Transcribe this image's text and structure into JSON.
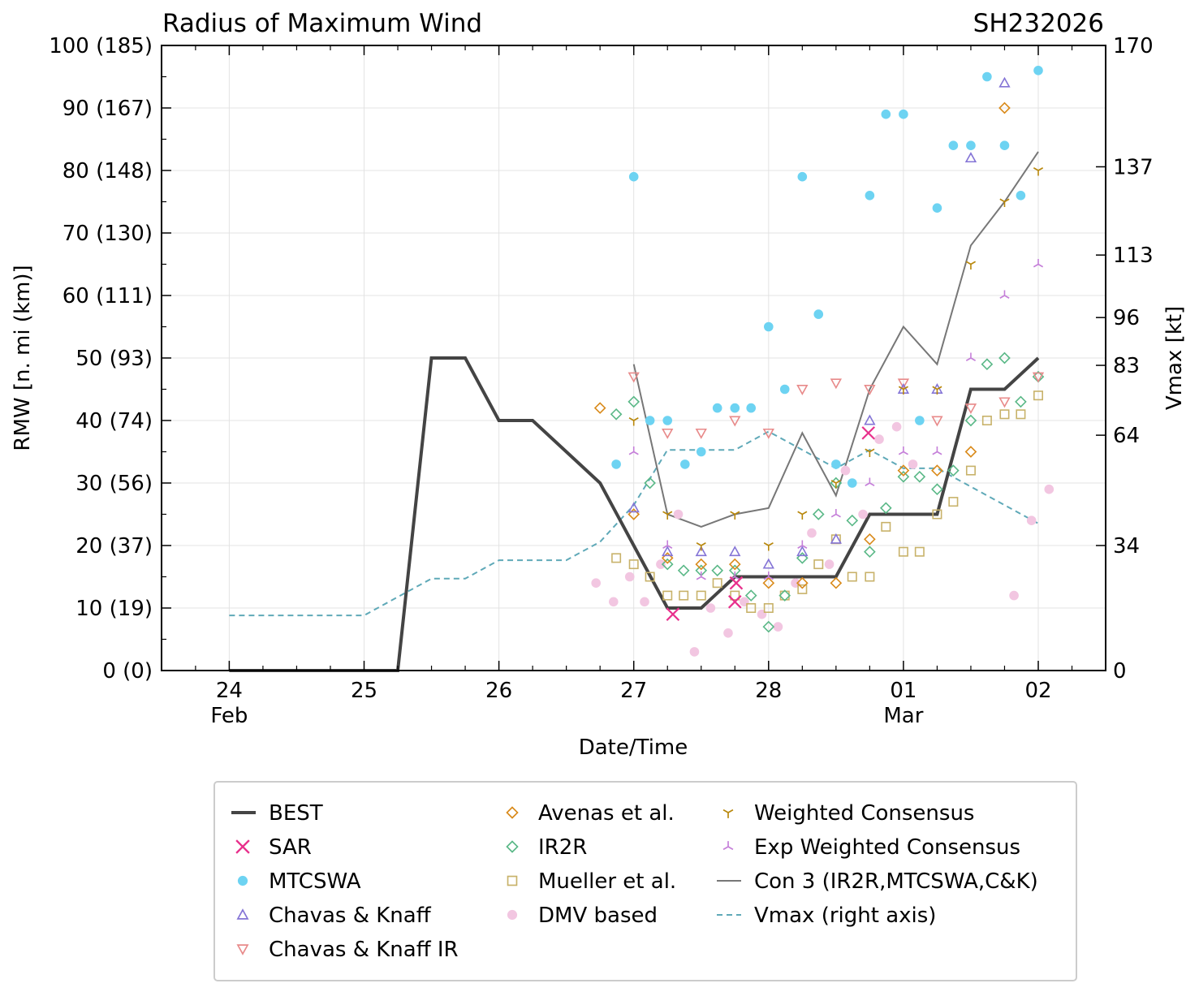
{
  "chart_data": {
    "type": "scatter",
    "title": "Radius of Maximum Wind",
    "storm_id": "SH232026",
    "xlabel": "Date/Time",
    "ylabel": "RMW [n. mi (km)]",
    "y2label": "Vmax [kt]",
    "xlim": [
      -0.5,
      6.5
    ],
    "ylim": [
      0,
      100
    ],
    "y2lim": [
      0,
      170
    ],
    "x_ticks": [
      {
        "x": 0,
        "day": "24",
        "month": "Feb"
      },
      {
        "x": 1,
        "day": "25",
        "month": ""
      },
      {
        "x": 2,
        "day": "26",
        "month": ""
      },
      {
        "x": 3,
        "day": "27",
        "month": ""
      },
      {
        "x": 4,
        "day": "28",
        "month": ""
      },
      {
        "x": 5,
        "day": "01",
        "month": "Mar"
      },
      {
        "x": 6,
        "day": "02",
        "month": ""
      }
    ],
    "y_ticks": [
      {
        "v": 0,
        "label": "0 (0)"
      },
      {
        "v": 10,
        "label": "10 (19)"
      },
      {
        "v": 20,
        "label": "20 (37)"
      },
      {
        "v": 30,
        "label": "30 (56)"
      },
      {
        "v": 40,
        "label": "40 (74)"
      },
      {
        "v": 50,
        "label": "50 (93)"
      },
      {
        "v": 60,
        "label": "60 (111)"
      },
      {
        "v": 70,
        "label": "70 (130)"
      },
      {
        "v": 80,
        "label": "80 (148)"
      },
      {
        "v": 90,
        "label": "90 (167)"
      },
      {
        "v": 100,
        "label": "100 (185)"
      }
    ],
    "y2_ticks": [
      {
        "v": 0,
        "label": "0"
      },
      {
        "v": 34,
        "label": "34"
      },
      {
        "v": 64,
        "label": "64"
      },
      {
        "v": 83,
        "label": "83"
      },
      {
        "v": 96,
        "label": "96"
      },
      {
        "v": 113,
        "label": "113"
      },
      {
        "v": 137,
        "label": "137"
      },
      {
        "v": 170,
        "label": "170"
      }
    ],
    "legend": {
      "placement": "below",
      "columns": [
        [
          "BEST",
          "SAR",
          "MTCSWA",
          "Chavas & Knaff",
          "Chavas & Knaff IR"
        ],
        [
          "Avenas et al.",
          "IR2R",
          "Mueller et al.",
          "DMV based"
        ],
        [
          "Weighted Consensus",
          "Exp Weighted Consensus",
          "Con 3 (IR2R,MTCSWA,C&K)",
          "Vmax (right axis)"
        ]
      ]
    },
    "series": [
      {
        "name": "BEST",
        "kind": "line",
        "style": "solid-thick",
        "color": "#444444",
        "points": [
          [
            0,
            0
          ],
          [
            1,
            0
          ],
          [
            1.25,
            0
          ],
          [
            1.5,
            50
          ],
          [
            1.75,
            50
          ],
          [
            2,
            40
          ],
          [
            2.25,
            40
          ],
          [
            2.75,
            30
          ],
          [
            3,
            20
          ],
          [
            3.25,
            10
          ],
          [
            3.5,
            10
          ],
          [
            3.75,
            15
          ],
          [
            4,
            15
          ],
          [
            4.25,
            15
          ],
          [
            4.5,
            15
          ],
          [
            4.75,
            25
          ],
          [
            5,
            25
          ],
          [
            5.25,
            25
          ],
          [
            5.5,
            45
          ],
          [
            5.75,
            45
          ],
          [
            6,
            50
          ]
        ]
      },
      {
        "name": "Con 3 (IR2R,MTCSWA,C&K)",
        "kind": "line",
        "style": "solid-thin",
        "color": "#777777",
        "points": [
          [
            3,
            49
          ],
          [
            3.25,
            25
          ],
          [
            3.5,
            23
          ],
          [
            3.75,
            25
          ],
          [
            4,
            26
          ],
          [
            4.25,
            38
          ],
          [
            4.5,
            28
          ],
          [
            4.75,
            45
          ],
          [
            5,
            55
          ],
          [
            5.25,
            49
          ],
          [
            5.5,
            68
          ],
          [
            5.75,
            75
          ],
          [
            6,
            83
          ]
        ]
      },
      {
        "name": "Vmax (right axis)",
        "kind": "line",
        "style": "dashed",
        "color": "#5fa9b8",
        "axis": "right",
        "points": [
          [
            0,
            15
          ],
          [
            1,
            15
          ],
          [
            1.25,
            20
          ],
          [
            1.5,
            25
          ],
          [
            1.75,
            25
          ],
          [
            2,
            30
          ],
          [
            2.25,
            30
          ],
          [
            2.5,
            30
          ],
          [
            2.75,
            35
          ],
          [
            3,
            45
          ],
          [
            3.25,
            60
          ],
          [
            3.5,
            60
          ],
          [
            3.75,
            60
          ],
          [
            4,
            65
          ],
          [
            4.25,
            60
          ],
          [
            4.5,
            55
          ],
          [
            4.75,
            60
          ],
          [
            5,
            55
          ],
          [
            5.25,
            55
          ],
          [
            5.5,
            50
          ],
          [
            5.75,
            45
          ],
          [
            6,
            40
          ]
        ]
      },
      {
        "name": "SAR",
        "kind": "marker",
        "marker": "x",
        "color": "#e8308c",
        "points": [
          [
            3.29,
            9
          ],
          [
            3.75,
            11
          ],
          [
            3.76,
            14
          ],
          [
            4.74,
            38
          ]
        ]
      },
      {
        "name": "MTCSWA",
        "kind": "marker",
        "marker": "dot",
        "color": "#6dd3f2",
        "points": [
          [
            2.87,
            33
          ],
          [
            3,
            79
          ],
          [
            3.12,
            40
          ],
          [
            3.25,
            40
          ],
          [
            3.38,
            33
          ],
          [
            3.5,
            35
          ],
          [
            3.62,
            42
          ],
          [
            3.75,
            42
          ],
          [
            3.87,
            42
          ],
          [
            4,
            55
          ],
          [
            4.12,
            45
          ],
          [
            4.25,
            79
          ],
          [
            4.37,
            57
          ],
          [
            4.5,
            33
          ],
          [
            4.62,
            30
          ],
          [
            4.75,
            76
          ],
          [
            4.87,
            89
          ],
          [
            5,
            89
          ],
          [
            5.12,
            40
          ],
          [
            5.25,
            74
          ],
          [
            5.37,
            84
          ],
          [
            5.5,
            84
          ],
          [
            5.62,
            95
          ],
          [
            5.75,
            84
          ],
          [
            5.87,
            76
          ],
          [
            6,
            96
          ]
        ]
      },
      {
        "name": "Chavas & Knaff",
        "kind": "marker",
        "marker": "triangle-up",
        "color": "#8474d6",
        "points": [
          [
            3,
            26
          ],
          [
            3.25,
            19
          ],
          [
            3.5,
            19
          ],
          [
            3.75,
            19
          ],
          [
            4,
            17
          ],
          [
            4.25,
            19
          ],
          [
            4.5,
            21
          ],
          [
            4.75,
            40
          ],
          [
            5,
            45
          ],
          [
            5.25,
            45
          ],
          [
            5.5,
            82
          ],
          [
            5.75,
            94
          ]
        ]
      },
      {
        "name": "Chavas & Knaff IR",
        "kind": "marker",
        "marker": "triangle-down",
        "color": "#e88a8a",
        "points": [
          [
            3,
            47
          ],
          [
            3.25,
            38
          ],
          [
            3.5,
            38
          ],
          [
            3.75,
            40
          ],
          [
            4,
            38
          ],
          [
            4.25,
            45
          ],
          [
            4.5,
            46
          ],
          [
            4.75,
            45
          ],
          [
            5,
            46
          ],
          [
            5.25,
            40
          ],
          [
            5.5,
            42
          ],
          [
            5.75,
            43
          ],
          [
            6,
            47
          ]
        ]
      },
      {
        "name": "Avenas et al.",
        "kind": "marker",
        "marker": "diamond",
        "color": "#d98a1a",
        "points": [
          [
            2.75,
            42
          ],
          [
            3,
            25
          ],
          [
            3.25,
            18
          ],
          [
            3.5,
            17
          ],
          [
            3.75,
            17
          ],
          [
            4,
            14
          ],
          [
            4.25,
            14
          ],
          [
            4.5,
            14
          ],
          [
            4.75,
            21
          ],
          [
            5,
            32
          ],
          [
            5.25,
            32
          ],
          [
            5.5,
            35
          ],
          [
            5.75,
            90
          ]
        ]
      },
      {
        "name": "IR2R",
        "kind": "marker",
        "marker": "diamond",
        "color": "#5ab887",
        "points": [
          [
            2.87,
            41
          ],
          [
            3,
            43
          ],
          [
            3.12,
            30
          ],
          [
            3.25,
            17
          ],
          [
            3.37,
            16
          ],
          [
            3.5,
            16
          ],
          [
            3.62,
            16
          ],
          [
            3.75,
            16
          ],
          [
            3.87,
            12
          ],
          [
            4,
            7
          ],
          [
            4.12,
            12
          ],
          [
            4.25,
            18
          ],
          [
            4.37,
            25
          ],
          [
            4.5,
            30
          ],
          [
            4.62,
            24
          ],
          [
            4.75,
            19
          ],
          [
            4.87,
            26
          ],
          [
            5,
            31
          ],
          [
            5.12,
            31
          ],
          [
            5.25,
            29
          ],
          [
            5.37,
            32
          ],
          [
            5.5,
            40
          ],
          [
            5.62,
            49
          ],
          [
            5.75,
            50
          ],
          [
            5.87,
            43
          ],
          [
            6,
            47
          ]
        ]
      },
      {
        "name": "Mueller et al.",
        "kind": "marker",
        "marker": "square",
        "color": "#c8b26a",
        "points": [
          [
            2.87,
            18
          ],
          [
            3,
            17
          ],
          [
            3.12,
            15
          ],
          [
            3.25,
            12
          ],
          [
            3.37,
            12
          ],
          [
            3.5,
            12
          ],
          [
            3.62,
            14
          ],
          [
            3.75,
            12
          ],
          [
            3.87,
            10
          ],
          [
            4,
            10
          ],
          [
            4.12,
            12
          ],
          [
            4.25,
            13
          ],
          [
            4.37,
            17
          ],
          [
            4.5,
            21
          ],
          [
            4.62,
            15
          ],
          [
            4.75,
            15
          ],
          [
            4.87,
            23
          ],
          [
            5,
            19
          ],
          [
            5.12,
            19
          ],
          [
            5.25,
            25
          ],
          [
            5.37,
            27
          ],
          [
            5.5,
            32
          ],
          [
            5.62,
            40
          ],
          [
            5.75,
            41
          ],
          [
            5.87,
            41
          ],
          [
            6,
            44
          ]
        ]
      },
      {
        "name": "DMV based",
        "kind": "marker",
        "marker": "dot",
        "color": "#f2c6e1",
        "points": [
          [
            2.72,
            14
          ],
          [
            2.85,
            11
          ],
          [
            2.97,
            15
          ],
          [
            3.08,
            11
          ],
          [
            3.2,
            17
          ],
          [
            3.33,
            25
          ],
          [
            3.45,
            3
          ],
          [
            3.57,
            10
          ],
          [
            3.7,
            6
          ],
          [
            3.82,
            11
          ],
          [
            3.95,
            9
          ],
          [
            4.07,
            7
          ],
          [
            4.2,
            14
          ],
          [
            4.32,
            22
          ],
          [
            4.45,
            17
          ],
          [
            4.57,
            32
          ],
          [
            4.7,
            25
          ],
          [
            4.82,
            37
          ],
          [
            4.95,
            39
          ],
          [
            5.07,
            33
          ],
          [
            5.82,
            12
          ],
          [
            5.95,
            24
          ],
          [
            6.08,
            29
          ]
        ]
      },
      {
        "name": "Weighted Consensus",
        "kind": "marker",
        "marker": "tri-down",
        "color": "#b8870b",
        "points": [
          [
            3,
            40
          ],
          [
            3.25,
            25
          ],
          [
            3.5,
            20
          ],
          [
            3.75,
            25
          ],
          [
            4,
            20
          ],
          [
            4.25,
            25
          ],
          [
            4.5,
            30
          ],
          [
            4.75,
            35
          ],
          [
            5,
            45
          ],
          [
            5.25,
            45
          ],
          [
            5.5,
            65
          ],
          [
            5.75,
            75
          ],
          [
            6,
            80
          ]
        ]
      },
      {
        "name": "Exp Weighted Consensus",
        "kind": "marker",
        "marker": "tri-up",
        "color": "#c57fd9",
        "points": [
          [
            3,
            35
          ],
          [
            3.25,
            20
          ],
          [
            3.5,
            15
          ],
          [
            3.75,
            15
          ],
          [
            4,
            15
          ],
          [
            4.25,
            20
          ],
          [
            4.5,
            25
          ],
          [
            4.75,
            30
          ],
          [
            5,
            35
          ],
          [
            5.25,
            35
          ],
          [
            5.5,
            50
          ],
          [
            5.75,
            60
          ],
          [
            6,
            65
          ]
        ]
      }
    ]
  }
}
